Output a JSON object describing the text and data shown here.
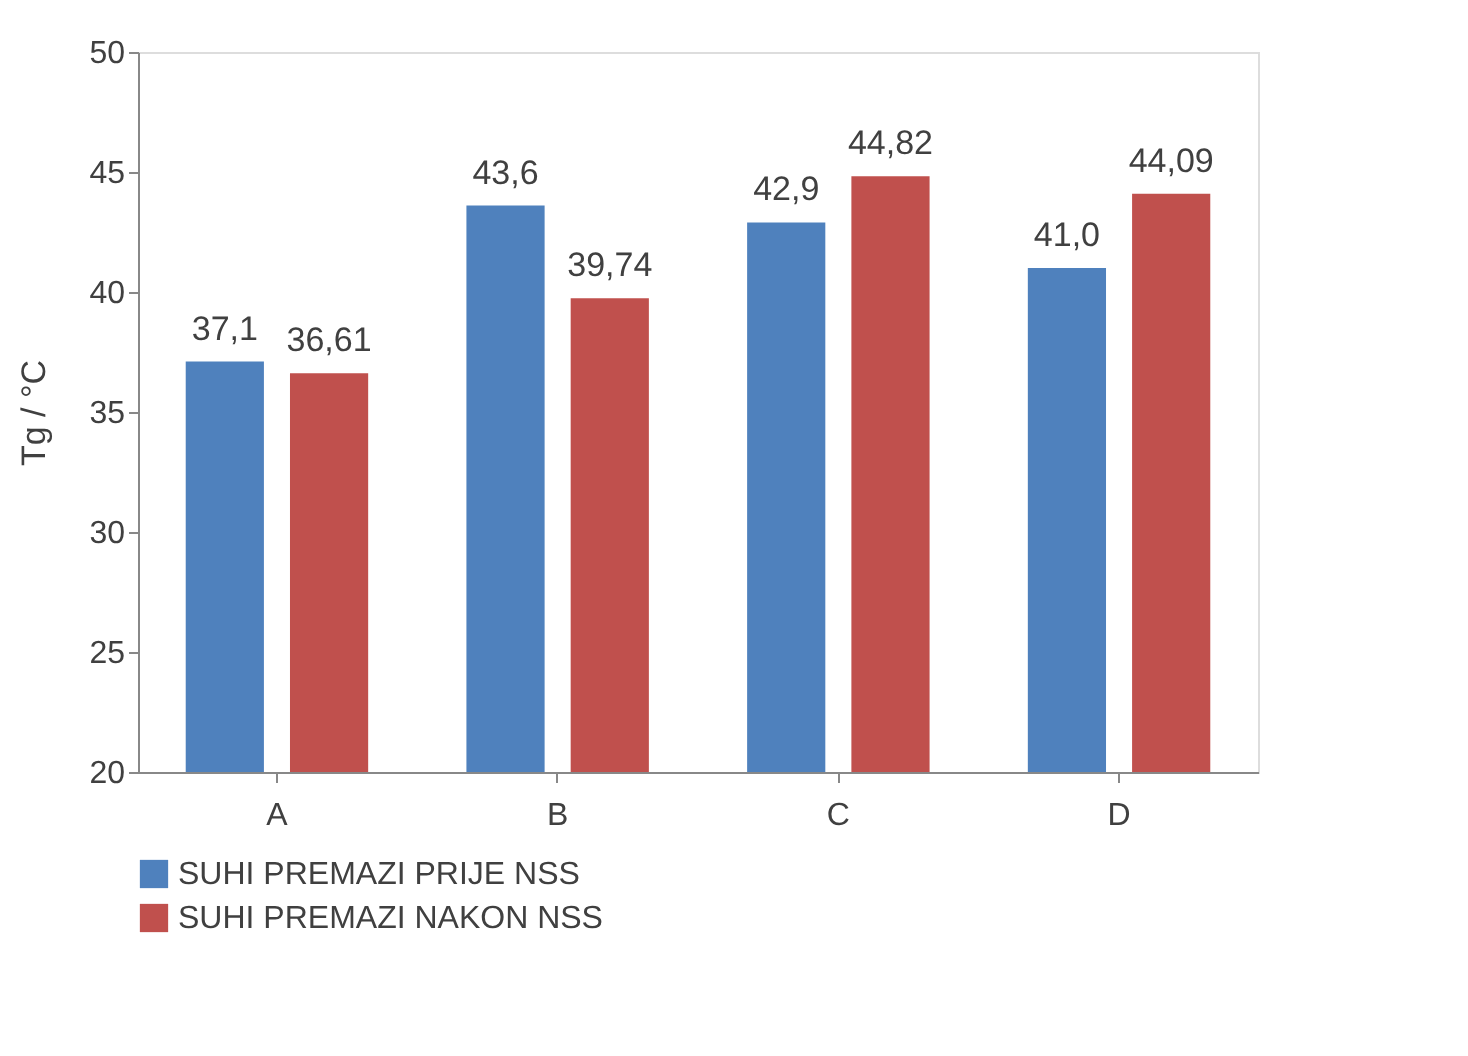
{
  "chart_data": {
    "type": "bar",
    "ylabel": "Tg / °C",
    "categories": [
      "A",
      "B",
      "C",
      "D"
    ],
    "series": [
      {
        "name": "SUHI PREMAZI PRIJE NSS",
        "color": "#4f81bd",
        "values": [
          37.1,
          43.6,
          42.9,
          41.0
        ],
        "value_labels": [
          "37,1",
          "43,6",
          "42,9",
          "41,0"
        ]
      },
      {
        "name": "SUHI PREMAZI NAKON NSS",
        "color": "#c0504d",
        "values": [
          36.61,
          39.74,
          44.82,
          44.09
        ],
        "value_labels": [
          "36,61",
          "39,74",
          "44,82",
          "44,09"
        ]
      }
    ],
    "ylim": [
      20,
      50
    ],
    "yticks": [
      20,
      25,
      30,
      35,
      40,
      45,
      50
    ],
    "grid": false,
    "legend": "bottom"
  }
}
